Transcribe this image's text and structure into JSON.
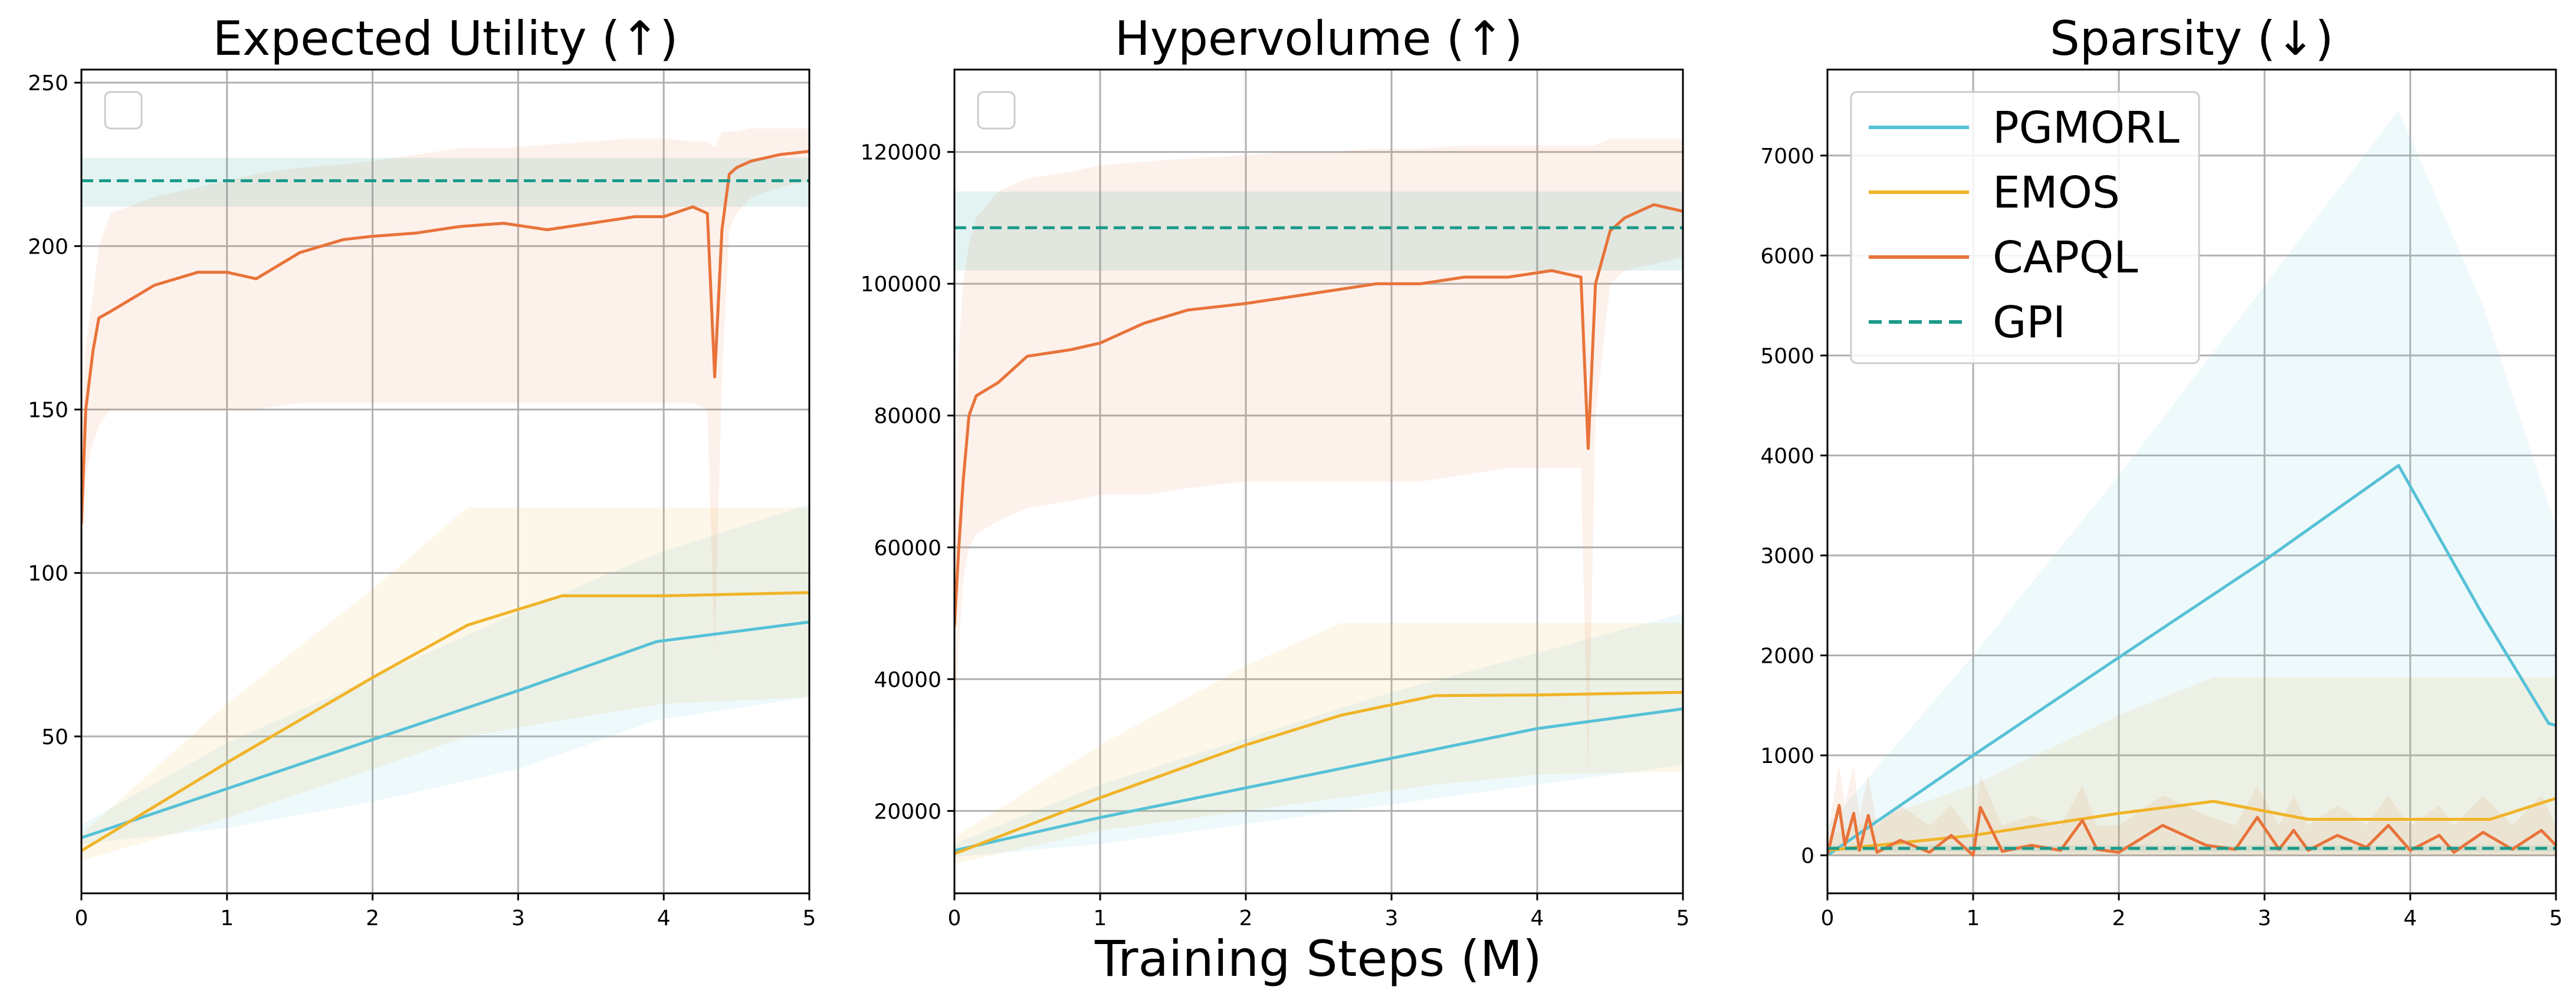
{
  "figure": {
    "xlabel": "Training Steps (M)",
    "colors": {
      "PGMORL": "#56c1d7",
      "EMOS": "#f0b429",
      "CAPQL": "#e8733a",
      "GPI": "#1a9a8a"
    }
  },
  "chart_data": [
    {
      "type": "line",
      "title": "Expected Utility (↑)",
      "xlim": [
        0,
        5
      ],
      "ylim": [
        2,
        254
      ],
      "xticks": [
        0,
        1,
        2,
        3,
        4,
        5
      ],
      "yticks": [
        50,
        100,
        150,
        200,
        250
      ],
      "grid": true,
      "legend": "top-left (empty)",
      "series": [
        {
          "name": "PGMORL",
          "x": [
            0,
            1,
            2,
            3,
            3.95,
            5
          ],
          "y": [
            19,
            34,
            49,
            64,
            79,
            85
          ],
          "band": {
            "lower": [
              17,
              22,
              30,
              40,
              55,
              62
            ],
            "upper": [
              23,
              48,
              68,
              88,
              106,
              121
            ]
          }
        },
        {
          "name": "EMOS",
          "x": [
            0,
            1,
            2,
            2.65,
            3.3,
            4.0,
            5
          ],
          "y": [
            15,
            42,
            68,
            84,
            93,
            93,
            94
          ],
          "band": {
            "lower": [
              12,
              25,
              40,
              50,
              55,
              60,
              62
            ],
            "upper": [
              20,
              60,
              95,
              120,
              120,
              120,
              120
            ]
          }
        },
        {
          "name": "CAPQL",
          "x": [
            0,
            0.03,
            0.08,
            0.12,
            0.2,
            0.5,
            0.8,
            1.0,
            1.2,
            1.5,
            1.8,
            2.0,
            2.3,
            2.6,
            2.9,
            3.2,
            3.5,
            3.8,
            4.0,
            4.2,
            4.3,
            4.35,
            4.4,
            4.45,
            4.5,
            4.6,
            4.8,
            5.0
          ],
          "y": [
            115,
            150,
            168,
            178,
            180,
            188,
            192,
            192,
            190,
            198,
            202,
            203,
            204,
            206,
            207,
            205,
            207,
            209,
            209,
            212,
            210,
            160,
            205,
            222,
            224,
            226,
            228,
            229
          ],
          "band": {
            "lower": [
              90,
              130,
              140,
              145,
              150,
              150,
              150,
              150,
              150,
              152,
              152,
              152,
              152,
              152,
              152,
              152,
              152,
              152,
              152,
              152,
              150,
              75,
              160,
              205,
              210,
              215,
              218,
              220
            ],
            "upper": [
              140,
              170,
              185,
              200,
              210,
              215,
              218,
              220,
              222,
              224,
              225,
              226,
              228,
              230,
              230,
              231,
              232,
              233,
              233,
              232,
              232,
              230,
              235,
              235,
              235,
              236,
              236,
              236
            ]
          }
        },
        {
          "name": "GPI",
          "x": [
            0,
            5
          ],
          "y": [
            220,
            220
          ],
          "style": "dashed",
          "band": {
            "lower": [
              212,
              212
            ],
            "upper": [
              227,
              227
            ]
          }
        }
      ]
    },
    {
      "type": "line",
      "title": "Hypervolume (↑)",
      "xlim": [
        0,
        5
      ],
      "ylim": [
        7500,
        132500
      ],
      "xticks": [
        0,
        1,
        2,
        3,
        4,
        5
      ],
      "yticks": [
        20000,
        40000,
        60000,
        80000,
        100000,
        120000
      ],
      "grid": true,
      "legend": "top-left (empty)",
      "series": [
        {
          "name": "PGMORL",
          "x": [
            0,
            1,
            2,
            3,
            4,
            5
          ],
          "y": [
            14000,
            19000,
            23500,
            28000,
            32500,
            35500
          ],
          "band": {
            "lower": [
              13000,
              15000,
              18000,
              21000,
              24000,
              27000
            ],
            "upper": [
              15000,
              24000,
              31000,
              38000,
              44000,
              50000
            ]
          }
        },
        {
          "name": "EMOS",
          "x": [
            0,
            1,
            2,
            2.65,
            3.3,
            4.0,
            5
          ],
          "y": [
            13500,
            22000,
            30000,
            34500,
            37500,
            37600,
            38000
          ],
          "band": {
            "lower": [
              12000,
              17000,
              20000,
              22000,
              24000,
              25500,
              26000
            ],
            "upper": [
              16000,
              30000,
              42000,
              48500,
              48500,
              48500,
              48500
            ]
          }
        },
        {
          "name": "CAPQL",
          "x": [
            0,
            0.03,
            0.06,
            0.1,
            0.15,
            0.3,
            0.5,
            0.8,
            1.0,
            1.3,
            1.6,
            2.0,
            2.3,
            2.6,
            2.9,
            3.2,
            3.5,
            3.8,
            4.1,
            4.3,
            4.35,
            4.4,
            4.5,
            4.6,
            4.8,
            5.0
          ],
          "y": [
            48000,
            60000,
            70000,
            80000,
            83000,
            85000,
            89000,
            90000,
            91000,
            94000,
            96000,
            97000,
            98000,
            99000,
            100000,
            100000,
            101000,
            101000,
            102000,
            101000,
            75000,
            100000,
            108000,
            110000,
            112000,
            111000
          ],
          "band": {
            "lower": [
              30000,
              45000,
              55000,
              60000,
              62000,
              64000,
              66000,
              67000,
              68000,
              68000,
              69000,
              70000,
              70000,
              70000,
              70000,
              70000,
              71000,
              72000,
              72000,
              72000,
              25000,
              80000,
              100000,
              102000,
              103000,
              104000
            ],
            "upper": [
              70000,
              90000,
              100000,
              106000,
              110000,
              114000,
              116000,
              117000,
              118000,
              118500,
              119000,
              119500,
              120000,
              120000,
              120500,
              120500,
              121000,
              121000,
              121000,
              121000,
              121000,
              121000,
              122000,
              122000,
              122000,
              122000
            ]
          }
        },
        {
          "name": "GPI",
          "x": [
            0,
            5
          ],
          "y": [
            108500,
            108500
          ],
          "style": "dashed",
          "band": {
            "lower": [
              102000,
              102000
            ],
            "upper": [
              114000,
              114000
            ]
          }
        }
      ]
    },
    {
      "type": "line",
      "title": "Sparsity (↓)",
      "xlim": [
        0,
        5
      ],
      "ylim": [
        -380,
        7860
      ],
      "xticks": [
        0,
        1,
        2,
        3,
        4,
        5
      ],
      "yticks": [
        0,
        1000,
        2000,
        3000,
        4000,
        5000,
        6000,
        7000
      ],
      "grid": true,
      "legend": "top-left",
      "series": [
        {
          "name": "PGMORL",
          "x": [
            0,
            1,
            2,
            3,
            3.92,
            4.5,
            4.95,
            5.0
          ],
          "y": [
            0,
            1000,
            1980,
            2950,
            3900,
            2400,
            1320,
            1300
          ],
          "band": {
            "lower": [
              0,
              0,
              0,
              0,
              0,
              0,
              0,
              0
            ],
            "upper": [
              300,
              2000,
              3800,
              5700,
              7450,
              5500,
              3500,
              3300
            ]
          }
        },
        {
          "name": "EMOS",
          "x": [
            0,
            1,
            2,
            2.65,
            3.3,
            4.0,
            4.55,
            5.0
          ],
          "y": [
            50,
            200,
            420,
            540,
            360,
            360,
            360,
            570
          ],
          "band": {
            "lower": [
              0,
              0,
              0,
              0,
              0,
              0,
              0,
              0
            ],
            "upper": [
              200,
              700,
              1400,
              1780,
              1780,
              1780,
              1780,
              1780
            ]
          }
        },
        {
          "name": "CAPQL",
          "x": [
            0,
            0.08,
            0.12,
            0.18,
            0.22,
            0.28,
            0.34,
            0.5,
            0.7,
            0.85,
            1.0,
            1.05,
            1.2,
            1.4,
            1.6,
            1.75,
            1.85,
            2.0,
            2.3,
            2.6,
            2.8,
            2.95,
            3.1,
            3.2,
            3.3,
            3.5,
            3.7,
            3.85,
            4.0,
            4.2,
            4.3,
            4.5,
            4.7,
            4.9,
            5.0
          ],
          "y": [
            0,
            500,
            100,
            420,
            50,
            400,
            30,
            150,
            30,
            200,
            0,
            480,
            40,
            100,
            50,
            350,
            60,
            30,
            300,
            100,
            60,
            380,
            60,
            250,
            50,
            200,
            80,
            300,
            50,
            200,
            30,
            230,
            60,
            250,
            100
          ],
          "band": {
            "lower": [
              0,
              0,
              0,
              0,
              0,
              0,
              0,
              0,
              0,
              0,
              0,
              0,
              0,
              0,
              0,
              0,
              0,
              0,
              0,
              0,
              0,
              0,
              0,
              0,
              0,
              0,
              0,
              0,
              0,
              0,
              0,
              0,
              0,
              0,
              0
            ],
            "upper": [
              200,
              900,
              500,
              900,
              400,
              800,
              300,
              500,
              300,
              500,
              200,
              800,
              300,
              400,
              300,
              700,
              300,
              300,
              600,
              400,
              300,
              700,
              300,
              600,
              300,
              500,
              300,
              600,
              300,
              500,
              300,
              600,
              300,
              600,
              300
            ]
          }
        },
        {
          "name": "GPI",
          "x": [
            0,
            5
          ],
          "y": [
            70,
            70
          ],
          "style": "dashed",
          "band": {
            "lower": [
              40,
              40
            ],
            "upper": [
              100,
              100
            ]
          }
        }
      ]
    }
  ]
}
